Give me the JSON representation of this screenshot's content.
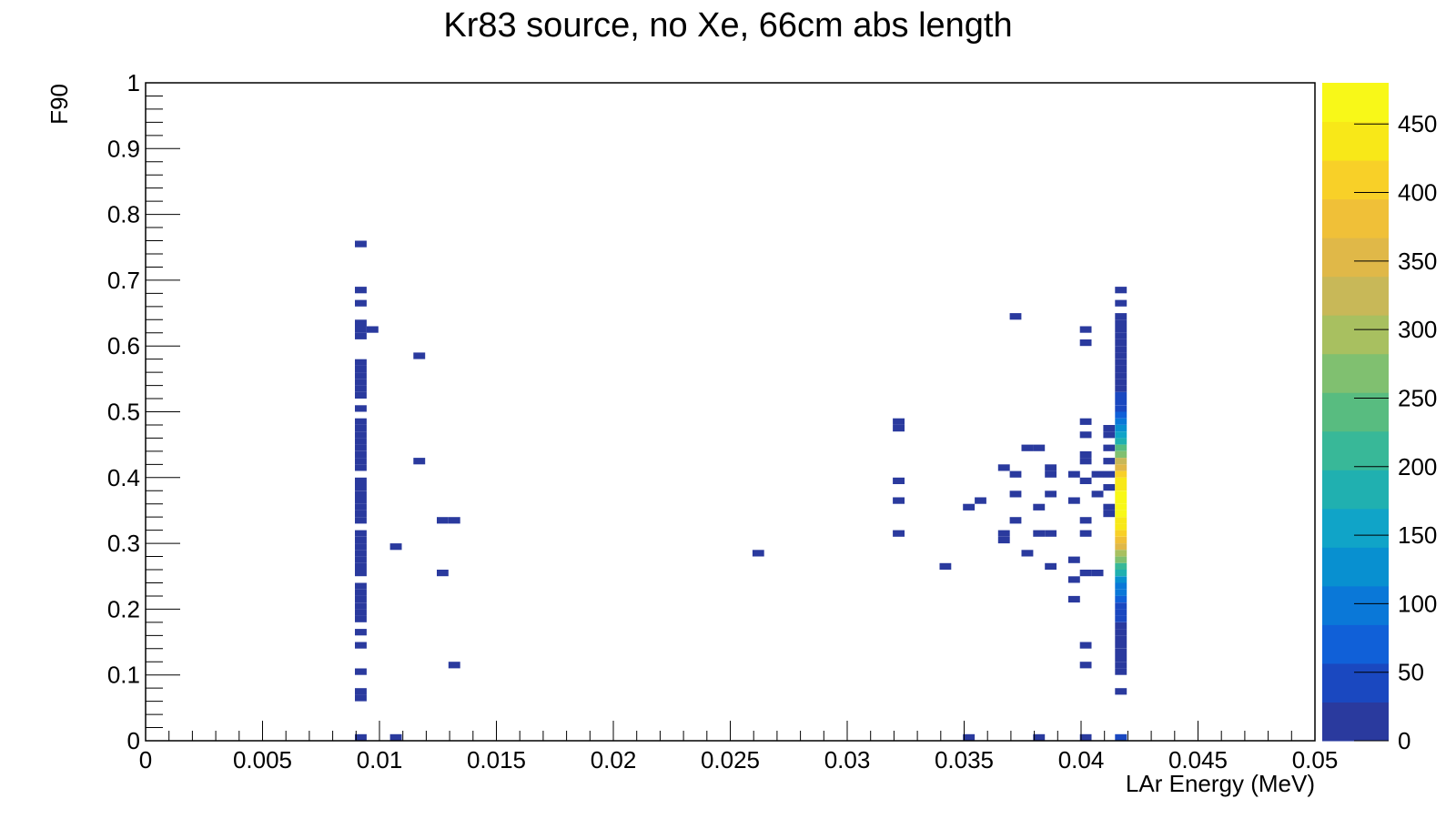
{
  "chart_data": {
    "type": "heatmap",
    "title": "Kr83 source, no Xe, 66cm abs length",
    "xlabel": "LAr Energy (MeV)",
    "ylabel": "F90",
    "xlim": [
      0,
      0.05
    ],
    "ylim": [
      0,
      1
    ],
    "x_ticks": [
      "0",
      "0.005",
      "0.01",
      "0.015",
      "0.02",
      "0.025",
      "0.03",
      "0.035",
      "0.04",
      "0.045",
      "0.05"
    ],
    "y_ticks": [
      "0",
      "0.1",
      "0.2",
      "0.3",
      "0.4",
      "0.5",
      "0.6",
      "0.7",
      "0.8",
      "0.9",
      "1"
    ],
    "z_ticks": [
      "0",
      "50",
      "100",
      "150",
      "200",
      "250",
      "300",
      "350",
      "400",
      "450"
    ],
    "zlim": [
      0,
      480
    ],
    "grid": false,
    "palette": [
      "#2a3a9e",
      "#1a48c0",
      "#1060d8",
      "#0a78d8",
      "#0890d0",
      "#10a4c8",
      "#20b0b0",
      "#38b898",
      "#58bc80",
      "#80c070",
      "#a8c060",
      "#c8b858",
      "#e0b848",
      "#f0c038",
      "#f8d028",
      "#f8e818",
      "#f8f818"
    ],
    "bin_width": 0.0005,
    "bin_height": 0.01,
    "bins": [
      [
        0.0092,
        0.755,
        1
      ],
      [
        0.0092,
        0.685,
        1
      ],
      [
        0.0092,
        0.665,
        1
      ],
      [
        0.0092,
        0.635,
        2
      ],
      [
        0.0092,
        0.625,
        2
      ],
      [
        0.0092,
        0.615,
        2
      ],
      [
        0.0097,
        0.625,
        1
      ],
      [
        0.0092,
        0.575,
        1
      ],
      [
        0.0092,
        0.565,
        1
      ],
      [
        0.0092,
        0.555,
        1
      ],
      [
        0.0092,
        0.545,
        1
      ],
      [
        0.0092,
        0.535,
        1
      ],
      [
        0.0092,
        0.525,
        1
      ],
      [
        0.0092,
        0.505,
        1
      ],
      [
        0.0092,
        0.485,
        1
      ],
      [
        0.0092,
        0.475,
        1
      ],
      [
        0.0092,
        0.465,
        1
      ],
      [
        0.0092,
        0.455,
        1
      ],
      [
        0.0092,
        0.445,
        1
      ],
      [
        0.0092,
        0.435,
        1
      ],
      [
        0.0092,
        0.425,
        1
      ],
      [
        0.0092,
        0.415,
        1
      ],
      [
        0.0092,
        0.395,
        1
      ],
      [
        0.0092,
        0.385,
        1
      ],
      [
        0.0092,
        0.375,
        1
      ],
      [
        0.0092,
        0.365,
        1
      ],
      [
        0.0092,
        0.355,
        1
      ],
      [
        0.0092,
        0.345,
        1
      ],
      [
        0.0092,
        0.335,
        1
      ],
      [
        0.0092,
        0.315,
        1
      ],
      [
        0.0092,
        0.305,
        1
      ],
      [
        0.0092,
        0.295,
        1
      ],
      [
        0.0092,
        0.285,
        1
      ],
      [
        0.0092,
        0.275,
        1
      ],
      [
        0.0092,
        0.265,
        1
      ],
      [
        0.0092,
        0.255,
        1
      ],
      [
        0.0092,
        0.235,
        1
      ],
      [
        0.0092,
        0.225,
        1
      ],
      [
        0.0092,
        0.215,
        1
      ],
      [
        0.0092,
        0.205,
        1
      ],
      [
        0.0092,
        0.195,
        1
      ],
      [
        0.0092,
        0.185,
        1
      ],
      [
        0.0092,
        0.165,
        1
      ],
      [
        0.0092,
        0.145,
        1
      ],
      [
        0.0092,
        0.105,
        1
      ],
      [
        0.0092,
        0.075,
        2
      ],
      [
        0.0092,
        0.065,
        2
      ],
      [
        0.0092,
        0.005,
        1
      ],
      [
        0.0107,
        0.005,
        1
      ],
      [
        0.0107,
        0.295,
        1
      ],
      [
        0.0117,
        0.585,
        1
      ],
      [
        0.0117,
        0.425,
        1
      ],
      [
        0.0127,
        0.335,
        1
      ],
      [
        0.0132,
        0.335,
        1
      ],
      [
        0.0127,
        0.255,
        1
      ],
      [
        0.0132,
        0.115,
        1
      ],
      [
        0.0262,
        0.285,
        1
      ],
      [
        0.0322,
        0.485,
        2
      ],
      [
        0.0322,
        0.475,
        2
      ],
      [
        0.0322,
        0.395,
        1
      ],
      [
        0.0322,
        0.365,
        1
      ],
      [
        0.0322,
        0.315,
        1
      ],
      [
        0.0342,
        0.265,
        1
      ],
      [
        0.0352,
        0.355,
        1
      ],
      [
        0.0357,
        0.365,
        1
      ],
      [
        0.0352,
        0.005,
        1
      ],
      [
        0.0367,
        0.415,
        1
      ],
      [
        0.0367,
        0.315,
        2
      ],
      [
        0.0367,
        0.305,
        2
      ],
      [
        0.0372,
        0.645,
        1
      ],
      [
        0.0372,
        0.405,
        1
      ],
      [
        0.0372,
        0.375,
        1
      ],
      [
        0.0372,
        0.335,
        1
      ],
      [
        0.0377,
        0.445,
        1
      ],
      [
        0.0382,
        0.445,
        1
      ],
      [
        0.0377,
        0.285,
        1
      ],
      [
        0.0382,
        0.355,
        1
      ],
      [
        0.0382,
        0.315,
        1
      ],
      [
        0.0382,
        0.005,
        1
      ],
      [
        0.0387,
        0.415,
        1
      ],
      [
        0.0387,
        0.405,
        1
      ],
      [
        0.0387,
        0.375,
        1
      ],
      [
        0.0387,
        0.315,
        1
      ],
      [
        0.0387,
        0.265,
        1
      ],
      [
        0.0397,
        0.405,
        1
      ],
      [
        0.0397,
        0.365,
        1
      ],
      [
        0.0397,
        0.275,
        1
      ],
      [
        0.0397,
        0.245,
        1
      ],
      [
        0.0397,
        0.215,
        1
      ],
      [
        0.0402,
        0.625,
        1
      ],
      [
        0.0402,
        0.605,
        1
      ],
      [
        0.0402,
        0.485,
        1
      ],
      [
        0.0402,
        0.465,
        1
      ],
      [
        0.0402,
        0.435,
        2
      ],
      [
        0.0402,
        0.425,
        2
      ],
      [
        0.0402,
        0.395,
        1
      ],
      [
        0.0402,
        0.335,
        1
      ],
      [
        0.0402,
        0.315,
        1
      ],
      [
        0.0402,
        0.255,
        1
      ],
      [
        0.0402,
        0.145,
        1
      ],
      [
        0.0402,
        0.115,
        1
      ],
      [
        0.0402,
        0.005,
        1
      ],
      [
        0.0407,
        0.405,
        1
      ],
      [
        0.0407,
        0.255,
        1
      ],
      [
        0.0407,
        0.375,
        1
      ],
      [
        0.0412,
        0.475,
        2
      ],
      [
        0.0412,
        0.465,
        2
      ],
      [
        0.0412,
        0.445,
        1
      ],
      [
        0.0412,
        0.425,
        1
      ],
      [
        0.0412,
        0.405,
        1
      ],
      [
        0.0412,
        0.385,
        1
      ],
      [
        0.0412,
        0.355,
        2
      ],
      [
        0.0412,
        0.345,
        2
      ],
      [
        0.0417,
        0.685,
        1
      ],
      [
        0.0417,
        0.665,
        1
      ],
      [
        0.0417,
        0.645,
        8
      ],
      [
        0.0417,
        0.635,
        8
      ],
      [
        0.0417,
        0.625,
        10
      ],
      [
        0.0417,
        0.615,
        10
      ],
      [
        0.0417,
        0.605,
        12
      ],
      [
        0.0417,
        0.595,
        12
      ],
      [
        0.0417,
        0.585,
        15
      ],
      [
        0.0417,
        0.575,
        15
      ],
      [
        0.0417,
        0.565,
        18
      ],
      [
        0.0417,
        0.555,
        20
      ],
      [
        0.0417,
        0.545,
        22
      ],
      [
        0.0417,
        0.535,
        25
      ],
      [
        0.0417,
        0.525,
        30
      ],
      [
        0.0417,
        0.515,
        40
      ],
      [
        0.0417,
        0.505,
        55
      ],
      [
        0.0417,
        0.495,
        70
      ],
      [
        0.0417,
        0.485,
        90
      ],
      [
        0.0417,
        0.475,
        120
      ],
      [
        0.0417,
        0.465,
        150
      ],
      [
        0.0417,
        0.455,
        190
      ],
      [
        0.0417,
        0.445,
        230
      ],
      [
        0.0417,
        0.435,
        280
      ],
      [
        0.0417,
        0.425,
        320
      ],
      [
        0.0417,
        0.415,
        360
      ],
      [
        0.0417,
        0.405,
        400
      ],
      [
        0.0417,
        0.395,
        430
      ],
      [
        0.0417,
        0.385,
        450
      ],
      [
        0.0417,
        0.375,
        470
      ],
      [
        0.0417,
        0.365,
        480
      ],
      [
        0.0417,
        0.355,
        475
      ],
      [
        0.0417,
        0.345,
        465
      ],
      [
        0.0417,
        0.335,
        445
      ],
      [
        0.0417,
        0.325,
        430
      ],
      [
        0.0417,
        0.315,
        410
      ],
      [
        0.0417,
        0.305,
        380
      ],
      [
        0.0417,
        0.295,
        340
      ],
      [
        0.0417,
        0.285,
        300
      ],
      [
        0.0417,
        0.275,
        260
      ],
      [
        0.0417,
        0.265,
        220
      ],
      [
        0.0417,
        0.255,
        180
      ],
      [
        0.0417,
        0.245,
        140
      ],
      [
        0.0417,
        0.235,
        110
      ],
      [
        0.0417,
        0.225,
        85
      ],
      [
        0.0417,
        0.215,
        65
      ],
      [
        0.0417,
        0.205,
        50
      ],
      [
        0.0417,
        0.195,
        40
      ],
      [
        0.0417,
        0.185,
        32
      ],
      [
        0.0417,
        0.175,
        26
      ],
      [
        0.0417,
        0.165,
        20
      ],
      [
        0.0417,
        0.155,
        16
      ],
      [
        0.0417,
        0.145,
        12
      ],
      [
        0.0417,
        0.135,
        10
      ],
      [
        0.0417,
        0.125,
        8
      ],
      [
        0.0417,
        0.115,
        6
      ],
      [
        0.0417,
        0.105,
        4
      ],
      [
        0.0417,
        0.075,
        2
      ],
      [
        0.0417,
        0.005,
        40
      ]
    ]
  }
}
